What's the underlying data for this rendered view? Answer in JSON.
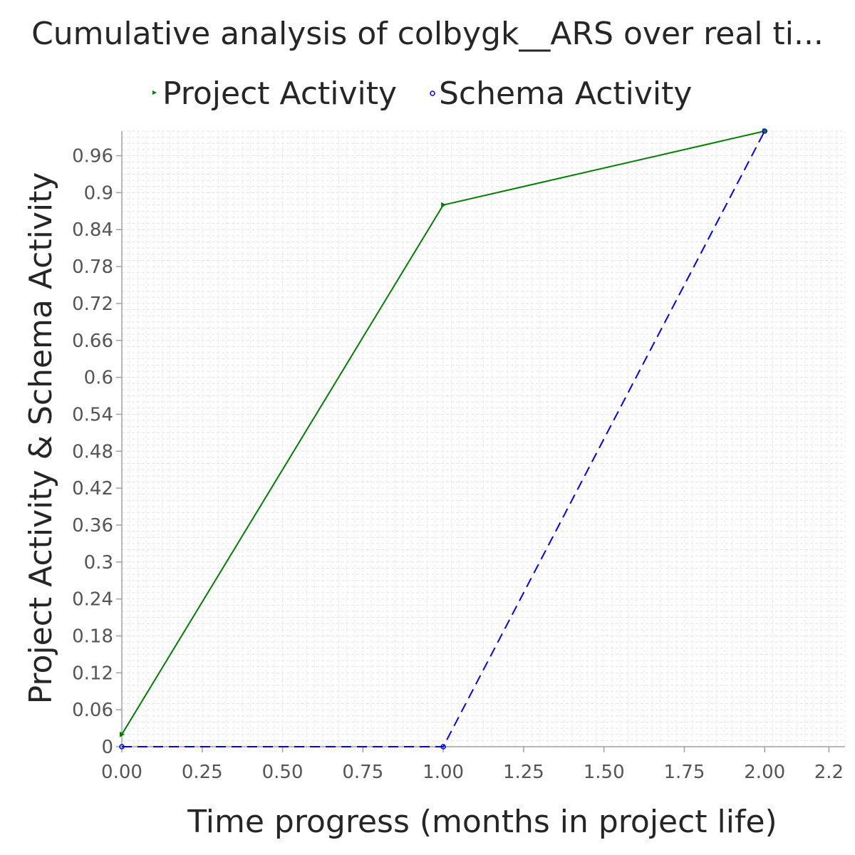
{
  "chart_data": {
    "type": "line",
    "title": "Cumulative analysis of colbygk__ARS over real ti...",
    "xlabel": "Time progress (months in project life)",
    "ylabel": "Project Activity & Schema Activity",
    "xlim": [
      0,
      2.25
    ],
    "ylim": [
      0,
      1.0
    ],
    "x_ticks": [
      "0.00",
      "0.25",
      "0.50",
      "0.75",
      "1.00",
      "1.25",
      "1.50",
      "1.75",
      "2.00",
      "2.2"
    ],
    "y_ticks": [
      "0",
      "0.06",
      "0.12",
      "0.18",
      "0.24",
      "0.3",
      "0.36",
      "0.42",
      "0.48",
      "0.54",
      "0.6",
      "0.66",
      "0.72",
      "0.78",
      "0.84",
      "0.9",
      "0.96"
    ],
    "grid": true,
    "legend_position": "top",
    "series": [
      {
        "name": "Project Activity",
        "color": "#008000",
        "dash": "solid",
        "marker": "triangle",
        "x": [
          0,
          1,
          2
        ],
        "y": [
          0.02,
          0.88,
          1.0
        ]
      },
      {
        "name": "Schema Activity",
        "color": "#0000ff",
        "dash": "dashed",
        "marker": "circle",
        "x": [
          0,
          1,
          2
        ],
        "y": [
          0,
          0,
          1.0
        ]
      }
    ]
  }
}
